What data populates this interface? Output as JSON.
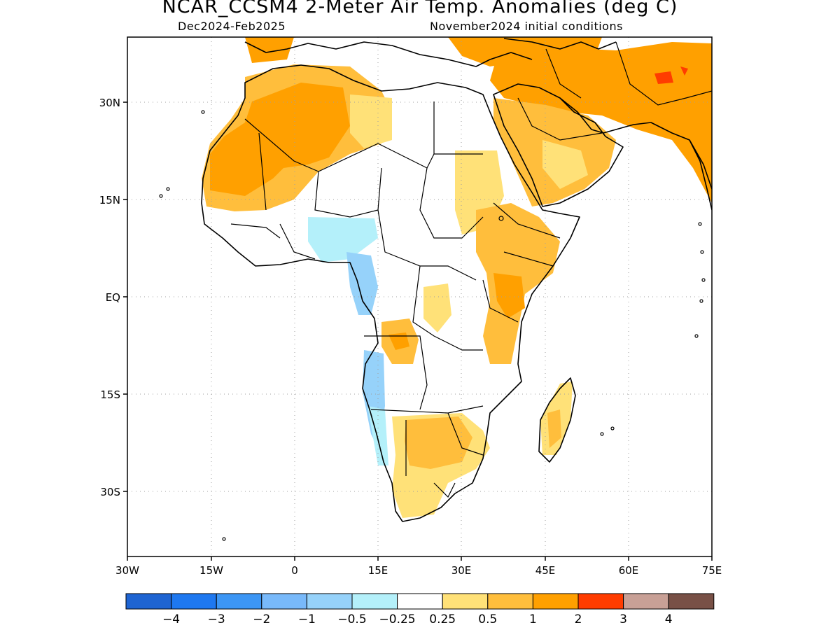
{
  "title": "NCAR_CCSM4 2-Meter Air Temp. Anomalies (deg C)",
  "period": "Dec2024-Feb2025",
  "init": "November2024 initial conditions",
  "lat_labels": [
    "30N",
    "15N",
    "EQ",
    "15S",
    "30S"
  ],
  "lon_labels": [
    "30W",
    "15W",
    "0",
    "15E",
    "30E",
    "45E",
    "60E",
    "75E"
  ],
  "colorbar": {
    "colors": [
      "#1e64d2",
      "#1e78f0",
      "#3c96f5",
      "#78b9fa",
      "#96d2fa",
      "#b4f0fa",
      "#ffffff",
      "#ffe178",
      "#ffbe3c",
      "#ffa000",
      "#ff3c00",
      "#c8a096",
      "#785046"
    ],
    "labels": [
      "-4",
      "-3",
      "-2",
      "-1",
      "-0.5",
      "-0.25",
      "0.25",
      "0.5",
      "1",
      "2",
      "3",
      "4"
    ]
  },
  "palette": {
    "frame": "#000000",
    "grid": "#a0a0a0",
    "coast": "#000000"
  }
}
